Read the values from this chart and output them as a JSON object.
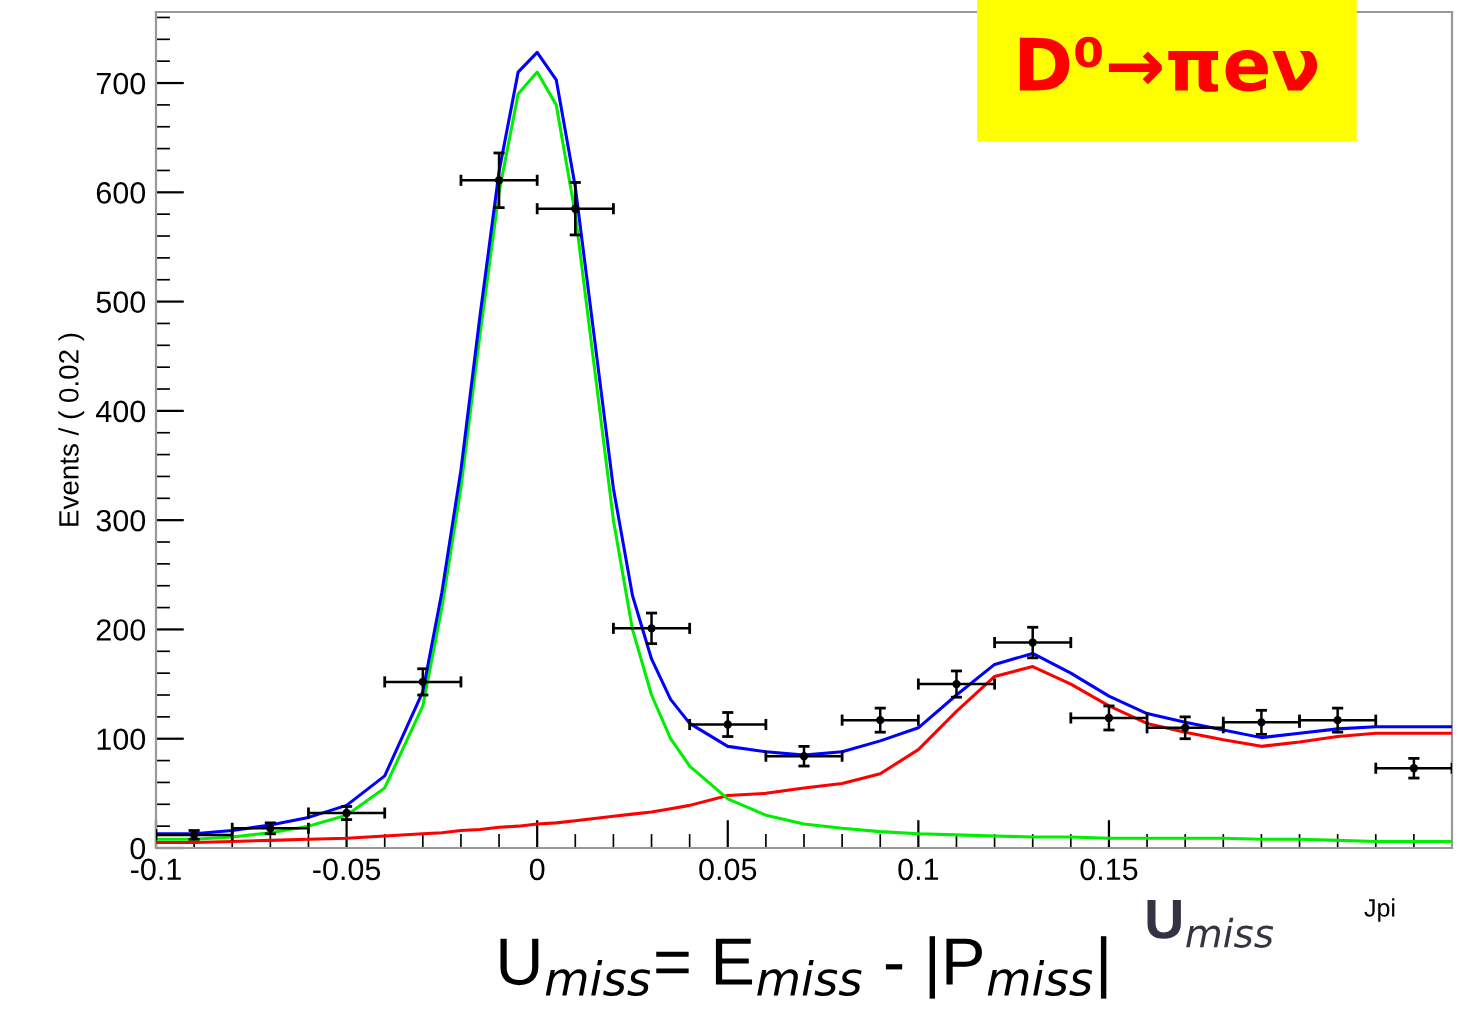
{
  "chart_data": {
    "type": "scatter",
    "xlabel": "U$_{miss}$= E$_{miss}$ - |P$_{miss}$|",
    "ylabel": "Events / ( 0.02 )",
    "annotations": [
      "D⁰→πeν",
      "U$_{miss}$",
      "Jpi"
    ],
    "xlim": [
      -0.1,
      0.24
    ],
    "ylim": [
      0,
      765
    ],
    "xticks": [
      -0.1,
      -0.05,
      0,
      0.05,
      0.1,
      0.15
    ],
    "yticks": [
      0,
      100,
      200,
      300,
      400,
      500,
      600,
      700
    ],
    "grid": false,
    "legend": false,
    "series": [
      {
        "color": "#000000",
        "marker": "circle",
        "x": [
          -0.09,
          -0.07,
          -0.05,
          -0.03,
          -0.01,
          0.01,
          0.03,
          0.05,
          0.07,
          0.09,
          0.11,
          0.13,
          0.15,
          0.17,
          0.19,
          0.21,
          0.23
        ],
        "values": [
          12,
          18,
          32,
          152,
          611,
          585,
          201,
          113,
          84,
          117,
          150,
          188,
          119,
          110,
          115,
          117,
          73
        ],
        "errors": [
          4,
          5,
          6,
          12,
          25,
          24,
          14,
          11,
          9,
          11,
          12,
          14,
          11,
          10,
          11,
          11,
          9
        ],
        "xerrors": [
          0.01,
          0.01,
          0.01,
          0.01,
          0.01,
          0.01,
          0.01,
          0.01,
          0.01,
          0.01,
          0.01,
          0.01,
          0.01,
          0.01,
          0.01,
          0.01,
          0.01
        ]
      },
      {
        "type": "line",
        "color": "#ff0000",
        "x": [
          -0.1,
          -0.09,
          -0.08,
          -0.07,
          -0.06,
          -0.05,
          -0.04,
          -0.03,
          -0.025,
          -0.02,
          -0.015,
          -0.01,
          -0.005,
          0,
          0.005,
          0.01,
          0.015,
          0.02,
          0.025,
          0.03,
          0.035,
          0.04,
          0.05,
          0.06,
          0.07,
          0.08,
          0.09,
          0.1,
          0.11,
          0.12,
          0.13,
          0.14,
          0.15,
          0.16,
          0.17,
          0.18,
          0.19,
          0.2,
          0.21,
          0.22,
          0.24
        ],
        "values": [
          5,
          5,
          6,
          7,
          8,
          9,
          11,
          13,
          14,
          16,
          17,
          19,
          20,
          22,
          23,
          25,
          27,
          29,
          31,
          33,
          36,
          39,
          48,
          50,
          55,
          59,
          68,
          90,
          125,
          157,
          166,
          150,
          130,
          114,
          106,
          99,
          93,
          97,
          102,
          105,
          105
        ]
      },
      {
        "type": "line",
        "color": "#00ee00",
        "x": [
          -0.1,
          -0.09,
          -0.08,
          -0.07,
          -0.06,
          -0.05,
          -0.04,
          -0.03,
          -0.025,
          -0.02,
          -0.015,
          -0.01,
          -0.005,
          0,
          0.005,
          0.01,
          0.015,
          0.02,
          0.025,
          0.03,
          0.035,
          0.04,
          0.05,
          0.06,
          0.07,
          0.08,
          0.09,
          0.1,
          0.11,
          0.12,
          0.13,
          0.14,
          0.15,
          0.16,
          0.17,
          0.18,
          0.19,
          0.2,
          0.21,
          0.22,
          0.24
        ],
        "values": [
          8,
          8,
          10,
          14,
          20,
          30,
          55,
          130,
          220,
          330,
          470,
          600,
          690,
          710,
          680,
          580,
          440,
          300,
          200,
          140,
          100,
          75,
          45,
          30,
          22,
          18,
          15,
          13,
          12,
          11,
          10,
          10,
          9,
          9,
          9,
          9,
          8,
          8,
          7,
          6,
          6
        ]
      },
      {
        "type": "line",
        "color": "#0000ff",
        "x": [
          -0.1,
          -0.09,
          -0.08,
          -0.07,
          -0.06,
          -0.05,
          -0.04,
          -0.03,
          -0.025,
          -0.02,
          -0.015,
          -0.01,
          -0.005,
          0,
          0.005,
          0.01,
          0.015,
          0.02,
          0.025,
          0.03,
          0.035,
          0.04,
          0.05,
          0.06,
          0.07,
          0.08,
          0.09,
          0.1,
          0.11,
          0.12,
          0.13,
          0.14,
          0.15,
          0.16,
          0.17,
          0.18,
          0.19,
          0.2,
          0.21,
          0.22,
          0.24
        ],
        "values": [
          13,
          13,
          16,
          21,
          28,
          39,
          66,
          143,
          234,
          346,
          487,
          619,
          710,
          728,
          703,
          605,
          467,
          329,
          231,
          173,
          136,
          114,
          93,
          88,
          85,
          88,
          98,
          110,
          140,
          168,
          178,
          160,
          139,
          123,
          115,
          108,
          101,
          105,
          109,
          111,
          111
        ]
      }
    ]
  }
}
